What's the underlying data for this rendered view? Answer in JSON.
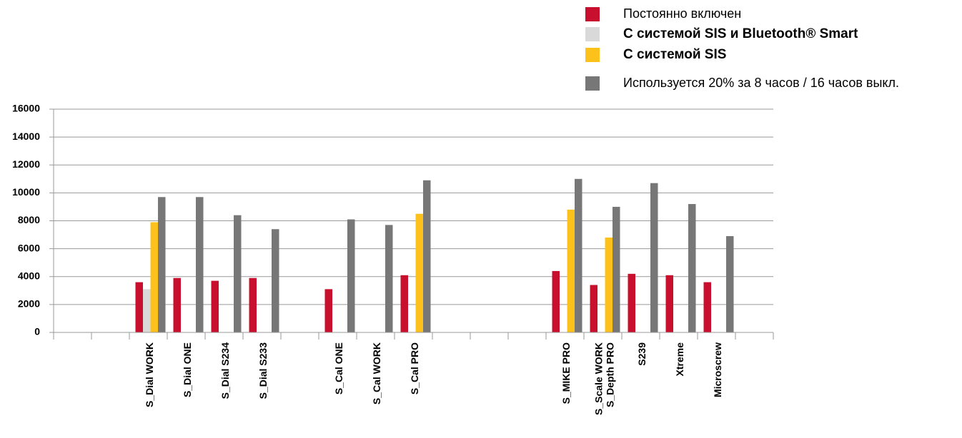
{
  "chart_data": {
    "type": "bar",
    "categories": [
      null,
      null,
      "S_Dial WORK",
      "S_Dial ONE",
      "S_Dial S234",
      "S_Dial S233",
      null,
      "S_Cal ONE",
      "S_Cal WORK",
      "S_Cal PRO",
      null,
      null,
      null,
      "S_MIKE PRO",
      "S_Scale WORK\nS_Depth PRO",
      "S239",
      "Xtreme",
      "Microscrew",
      null
    ],
    "series": [
      {
        "name": "Постоянно включен",
        "color": "#c8102e",
        "values": [
          null,
          null,
          3600,
          3900,
          3700,
          3900,
          null,
          3100,
          null,
          4100,
          null,
          null,
          null,
          4400,
          3400,
          4200,
          4100,
          3600,
          null
        ]
      },
      {
        "name": "С системой SIS и Bluetooth® Smart",
        "color": "#d9d9d9",
        "values": [
          null,
          null,
          3100,
          null,
          null,
          null,
          null,
          null,
          null,
          null,
          null,
          null,
          null,
          null,
          null,
          null,
          null,
          null,
          null
        ]
      },
      {
        "name": "С системой SIS",
        "color": "#fcc21b",
        "values": [
          null,
          null,
          7900,
          null,
          null,
          null,
          null,
          null,
          null,
          8500,
          null,
          null,
          null,
          8800,
          6800,
          null,
          null,
          null,
          null
        ]
      },
      {
        "name": "Используется 20% за 8 часов / 16 часов выкл.",
        "color": "#777777",
        "values": [
          null,
          null,
          9700,
          9700,
          8400,
          7400,
          null,
          8100,
          7700,
          10900,
          null,
          null,
          null,
          11000,
          9000,
          10700,
          9200,
          6900,
          null
        ]
      }
    ],
    "ylim": [
      0,
      16000
    ],
    "yticks": [
      0,
      2000,
      4000,
      6000,
      8000,
      10000,
      12000,
      14000,
      16000
    ],
    "grid": true
  }
}
